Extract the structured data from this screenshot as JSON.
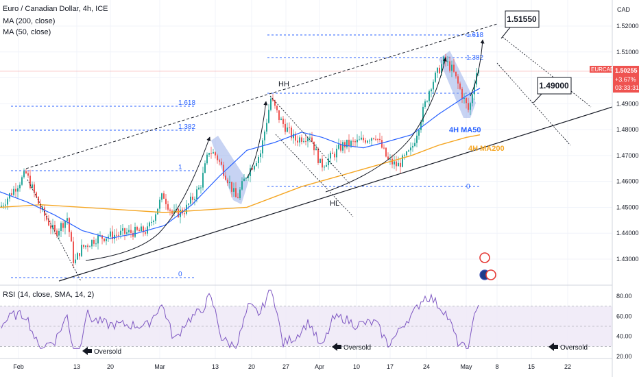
{
  "header": {
    "symbol_line": "Euro / Canadian Dollar, 4h, ICE",
    "ma200": "MA (200, close)",
    "ma50": "MA (50, close)",
    "rsi": "RSI (14, close, SMA, 14, 2)"
  },
  "price_axis": {
    "currency": "CAD",
    "ticks": [
      "1.52000",
      "1.51000",
      "1.50000",
      "1.49000",
      "1.48000",
      "1.47000",
      "1.46000",
      "1.45000",
      "1.44000",
      "1.43000"
    ],
    "badge_symbol": "EURCAD",
    "badge_price": "1.50255",
    "badge_change": "+3.67%",
    "badge_timer": "03:33:31"
  },
  "rsi_axis": {
    "ticks": [
      "80.00",
      "60.00",
      "40.00",
      "20.00"
    ]
  },
  "time_axis": {
    "labels": [
      "Feb",
      "13",
      "20",
      "Mar",
      "13",
      "20",
      "27",
      "Apr",
      "10",
      "17",
      "24",
      "May",
      "8",
      "15",
      "22"
    ]
  },
  "fib_left": {
    "levels": [
      "1.618",
      "1.382",
      "1",
      "0"
    ]
  },
  "fib_right": {
    "levels": [
      "1.618",
      "1.382",
      "0"
    ]
  },
  "annotations": {
    "hh": "HH",
    "hl": "HL",
    "ma50_label": "4H MA50",
    "ma200_label": "4H MA200",
    "target_high": "1.51550",
    "target_low": "1.49000",
    "oversold": "Oversold"
  },
  "colors": {
    "ma50": "#2962ff",
    "ma200": "#f5a623",
    "fib": "#2962ff",
    "rsi_line": "#7e57c2",
    "rsi_band": "#ede7f6",
    "candle_up": "#26a69a",
    "candle_down": "#ef5350",
    "highlight": "#8fa8e8",
    "price_badge": "#ef5350"
  },
  "chart_data": {
    "type": "candlestick",
    "symbol": "EURCAD",
    "timeframe": "4h",
    "y_range": [
      1.423,
      1.525
    ],
    "rsi_range": [
      17,
      88
    ],
    "last_price": 1.50255,
    "change_pct": 3.67,
    "target_high": 1.5155,
    "target_low": 1.49,
    "series": [
      {
        "name": "MA (50, close)",
        "points": [
          [
            0,
            1.456
          ],
          [
            40,
            1.452
          ],
          [
            80,
            1.447
          ],
          [
            120,
            1.441
          ],
          [
            160,
            1.438
          ],
          [
            200,
            1.44
          ],
          [
            240,
            1.443
          ],
          [
            280,
            1.451
          ],
          [
            320,
            1.462
          ],
          [
            360,
            1.472
          ],
          [
            400,
            1.475
          ],
          [
            440,
            1.479
          ],
          [
            470,
            1.477
          ],
          [
            500,
            1.474
          ],
          [
            530,
            1.473
          ],
          [
            560,
            1.475
          ],
          [
            600,
            1.478
          ],
          [
            640,
            1.486
          ],
          [
            680,
            1.493
          ],
          [
            700,
            1.496
          ]
        ]
      },
      {
        "name": "MA (200, close)",
        "points": [
          [
            0,
            1.45
          ],
          [
            60,
            1.451
          ],
          [
            120,
            1.45
          ],
          [
            180,
            1.449
          ],
          [
            240,
            1.448
          ],
          [
            300,
            1.449
          ],
          [
            360,
            1.45
          ],
          [
            400,
            1.454
          ],
          [
            440,
            1.458
          ],
          [
            480,
            1.461
          ],
          [
            520,
            1.464
          ],
          [
            560,
            1.467
          ],
          [
            600,
            1.47
          ],
          [
            640,
            1.474
          ],
          [
            680,
            1.477
          ],
          [
            700,
            1.478
          ]
        ]
      }
    ],
    "rsi_levels": [
      70,
      50,
      30
    ]
  }
}
